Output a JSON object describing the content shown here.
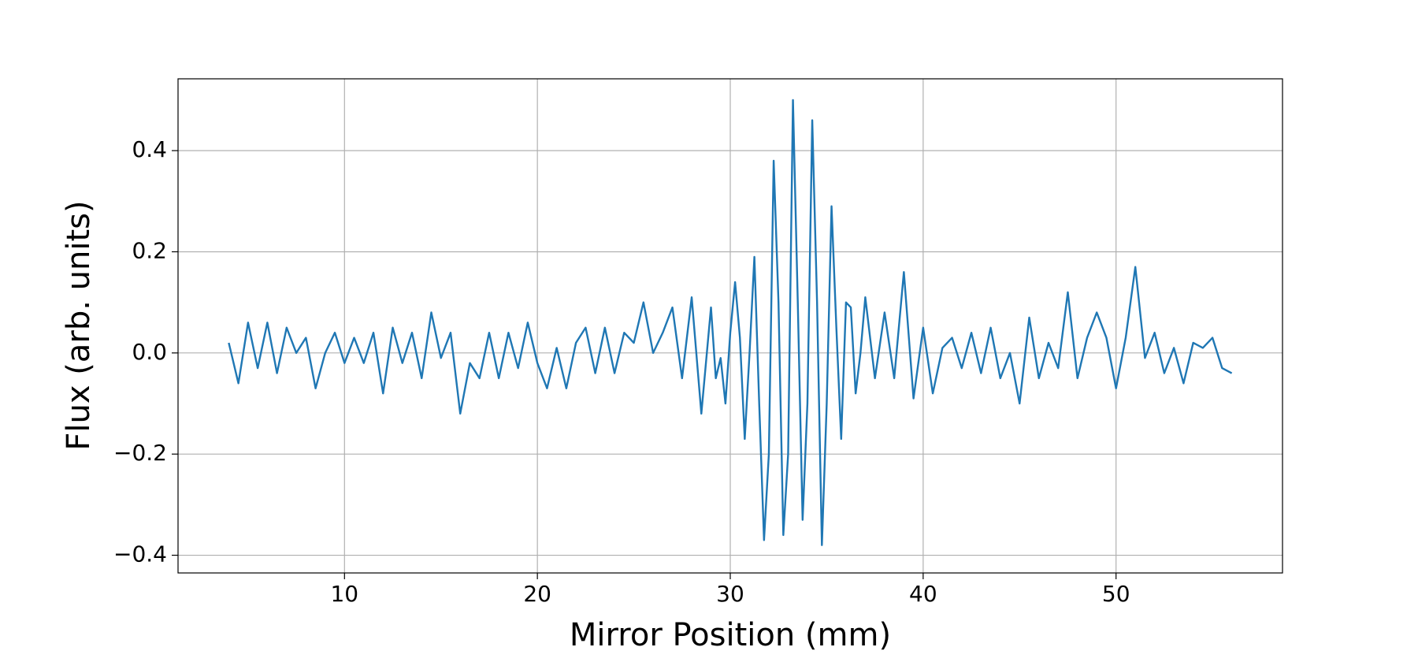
{
  "chart_data": {
    "type": "line",
    "xlabel": "Mirror Position (mm)",
    "ylabel": "Flux (arb. units)",
    "x": [
      4,
      4.5,
      5,
      5.5,
      6,
      6.5,
      7,
      7.5,
      8,
      8.5,
      9,
      9.5,
      10,
      10.5,
      11,
      11.5,
      12,
      12.5,
      13,
      13.5,
      14,
      14.5,
      15,
      15.5,
      16,
      16.5,
      17,
      17.5,
      18,
      18.5,
      19,
      19.5,
      20,
      20.5,
      21,
      21.5,
      22,
      22.5,
      23,
      23.5,
      24,
      24.5,
      25,
      25.5,
      26,
      26.5,
      27,
      27.5,
      28,
      28.5,
      29,
      29.25,
      29.5,
      29.75,
      30,
      30.25,
      30.5,
      30.75,
      31,
      31.25,
      31.5,
      31.75,
      32,
      32.25,
      32.5,
      32.75,
      33,
      33.25,
      33.5,
      33.75,
      34,
      34.25,
      34.5,
      34.75,
      35,
      35.25,
      35.5,
      35.75,
      36,
      36.25,
      36.5,
      36.75,
      37,
      37.5,
      38,
      38.5,
      39,
      39.5,
      40,
      40.5,
      41,
      41.5,
      42,
      42.5,
      43,
      43.5,
      44,
      44.5,
      45,
      45.5,
      46,
      46.5,
      47,
      47.5,
      48,
      48.5,
      49,
      49.5,
      50,
      50.5,
      51,
      51.5,
      52,
      52.5,
      53,
      53.5,
      54,
      54.5,
      55,
      55.5,
      56
    ],
    "series": [
      {
        "name": "Flux",
        "color": "#1f77b4",
        "values": [
          0.02,
          -0.06,
          0.06,
          -0.03,
          0.06,
          -0.04,
          0.05,
          0.0,
          0.03,
          -0.07,
          0.0,
          0.04,
          -0.02,
          0.03,
          -0.02,
          0.04,
          -0.08,
          0.05,
          -0.02,
          0.04,
          -0.05,
          0.08,
          -0.01,
          0.04,
          -0.12,
          -0.02,
          -0.05,
          0.04,
          -0.05,
          0.04,
          -0.03,
          0.06,
          -0.02,
          -0.07,
          0.01,
          -0.07,
          0.02,
          0.05,
          -0.04,
          0.05,
          -0.04,
          0.04,
          0.02,
          0.1,
          0.0,
          0.04,
          0.09,
          -0.05,
          0.11,
          -0.12,
          0.09,
          -0.05,
          -0.01,
          -0.1,
          0.04,
          0.14,
          0.03,
          -0.17,
          0.0,
          0.19,
          -0.1,
          -0.37,
          -0.2,
          0.38,
          0.1,
          -0.36,
          -0.2,
          0.5,
          0.1,
          -0.33,
          -0.1,
          0.46,
          0.1,
          -0.38,
          -0.1,
          0.29,
          0.05,
          -0.17,
          0.1,
          0.09,
          -0.08,
          0.0,
          0.11,
          -0.05,
          0.08,
          -0.05,
          0.16,
          -0.09,
          0.05,
          -0.08,
          0.01,
          0.03,
          -0.03,
          0.04,
          -0.04,
          0.05,
          -0.05,
          0.0,
          -0.1,
          0.07,
          -0.05,
          0.02,
          -0.03,
          0.12,
          -0.05,
          0.03,
          0.08,
          0.03,
          -0.07,
          0.03,
          0.17,
          -0.01,
          0.04,
          -0.04,
          0.01,
          -0.06,
          0.02,
          0.01,
          0.03,
          -0.03,
          -0.04
        ]
      }
    ],
    "xlim": [
      1.37,
      58.63
    ],
    "ylim": [
      -0.435,
      0.542
    ],
    "xticks": [
      10,
      20,
      30,
      40,
      50
    ],
    "yticks": [
      {
        "value": -0.4,
        "label": "−0.4"
      },
      {
        "value": -0.2,
        "label": "−0.2"
      },
      {
        "value": 0,
        "label": "0.0"
      },
      0.2,
      0.4
    ],
    "grid": true
  }
}
